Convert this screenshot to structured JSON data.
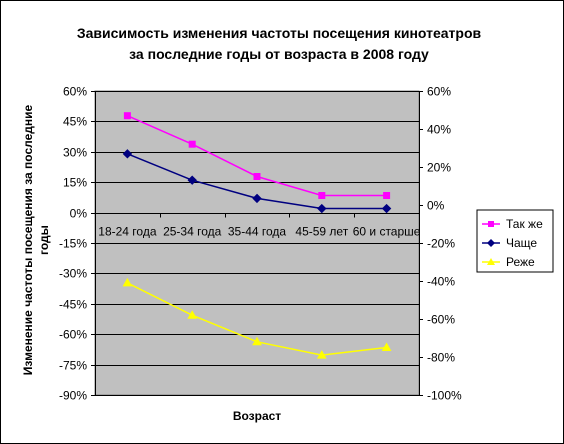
{
  "chart_data": {
    "type": "line",
    "title_lines": [
      "Зависимость изменения частоты посещения кинотеатров",
      "за последние годы от возраста в 2008 году"
    ],
    "xlabel": "Возраст",
    "ylabel_lines": [
      "Изменение частоты посещения за последние",
      "годы"
    ],
    "categories": [
      "18-24 года",
      "25-34 года",
      "35-44 года",
      "45-59 лет",
      "60 и старше"
    ],
    "y_left": {
      "min": -0.9,
      "max": 0.6,
      "step": 0.15,
      "ticks": [
        "60%",
        "45%",
        "30%",
        "15%",
        "0%",
        "-15%",
        "-30%",
        "-45%",
        "-60%",
        "-75%",
        "-90%"
      ]
    },
    "y_right": {
      "min": -1.0,
      "max": 0.6,
      "step": 0.2,
      "ticks": [
        "60%",
        "40%",
        "20%",
        "0%",
        "-20%",
        "-40%",
        "-60%",
        "-80%",
        "-100%"
      ]
    },
    "series": [
      {
        "name": "Так же",
        "axis": "right",
        "color": "#ff00ff",
        "marker": "square",
        "values": [
          0.47,
          0.32,
          0.15,
          0.05,
          0.05
        ]
      },
      {
        "name": "Чаще",
        "axis": "left",
        "color": "#000080",
        "marker": "diamond",
        "values": [
          0.29,
          0.16,
          0.07,
          0.02,
          0.02
        ]
      },
      {
        "name": "Реже",
        "axis": "right",
        "color": "#ffff00",
        "marker": "triangle",
        "values": [
          -0.41,
          -0.58,
          -0.72,
          -0.79,
          -0.75
        ]
      }
    ],
    "grid": true,
    "plot_background": "#c0c0c0",
    "legend_position": "right"
  }
}
